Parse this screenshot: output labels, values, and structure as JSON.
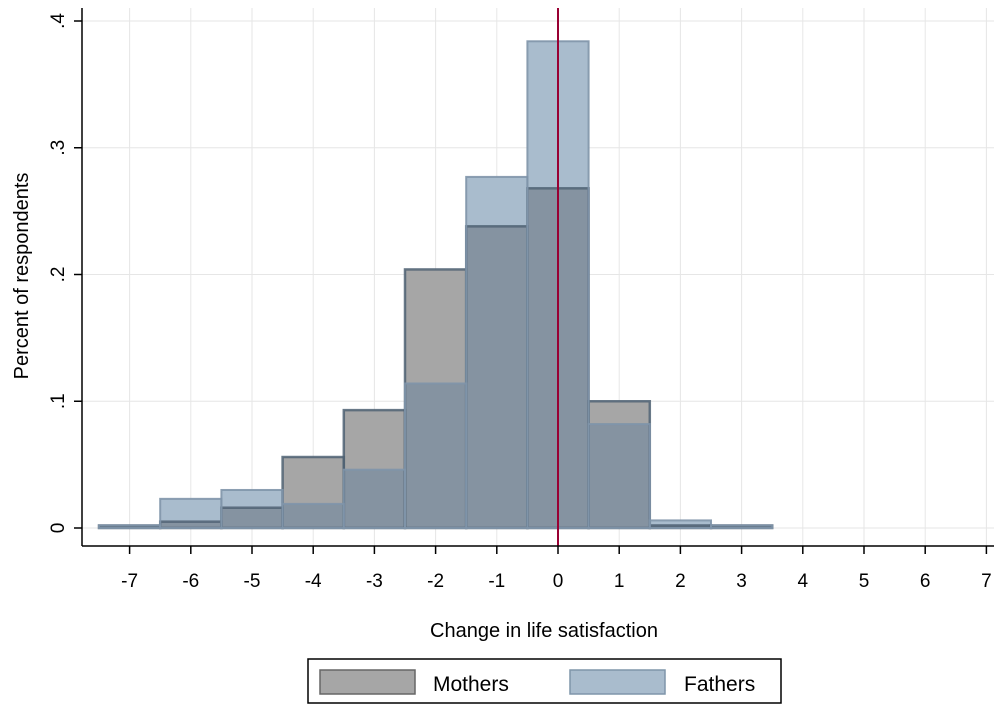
{
  "chart_data": {
    "type": "bar",
    "subtype": "overlaid-histogram",
    "xlabel": "Change in life satisfaction",
    "ylabel": "Percent of respondents",
    "xlim": [
      -7.5,
      7.0
    ],
    "ylim": [
      0,
      0.4
    ],
    "x_ticks": [
      -7,
      -6,
      -5,
      -4,
      -3,
      -2,
      -1,
      0,
      1,
      2,
      3,
      4,
      5,
      6,
      7
    ],
    "y_ticks": [
      {
        "value": 0,
        "label": "0"
      },
      {
        "value": 0.1,
        "label": ".1"
      },
      {
        "value": 0.2,
        "label": ".2"
      },
      {
        "value": 0.3,
        "label": ".3"
      },
      {
        "value": 0.4,
        "label": ".4"
      }
    ],
    "bin_width": 1,
    "reference_line_x": 0,
    "grid": true,
    "legend_position": "bottom",
    "series": [
      {
        "name": "Mothers",
        "color": "#a6a6a6",
        "x": [
          -7,
          -6,
          -5,
          -4,
          -3,
          -2,
          -1,
          0,
          1,
          2,
          3
        ],
        "values": [
          0.002,
          0.005,
          0.016,
          0.056,
          0.093,
          0.204,
          0.238,
          0.268,
          0.1,
          0.002,
          0.002
        ]
      },
      {
        "name": "Fathers",
        "color": "#a9bccd",
        "x": [
          -7,
          -6,
          -5,
          -4,
          -3,
          -2,
          -1,
          0,
          1,
          2,
          3
        ],
        "values": [
          0.002,
          0.023,
          0.03,
          0.019,
          0.046,
          0.114,
          0.277,
          0.384,
          0.082,
          0.006,
          0.002
        ]
      }
    ]
  }
}
